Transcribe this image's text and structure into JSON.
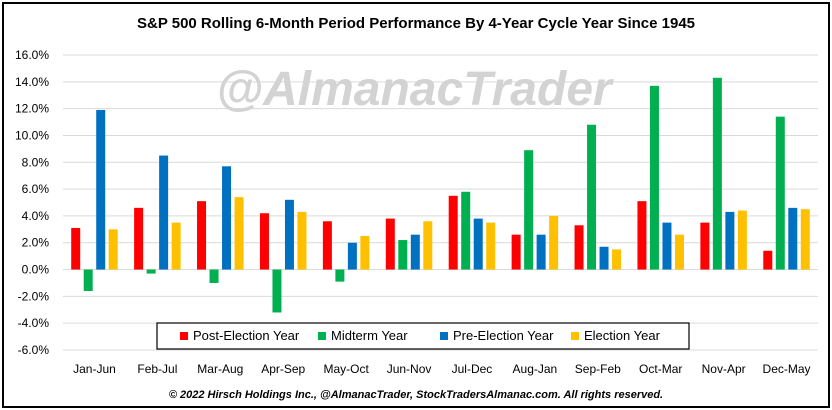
{
  "chart_data": {
    "type": "bar",
    "title": "S&P 500 Rolling 6-Month Period Performance By 4-Year Cycle Year Since 1945",
    "watermark": "@AlmanacTrader",
    "copyright": "© 2022 Hirsch Holdings Inc., @AlmanacTrader, StockTradersAlmanac.com. All rights reserved.",
    "categories": [
      "Jan-Jun",
      "Feb-Jul",
      "Mar-Aug",
      "Apr-Sep",
      "May-Oct",
      "Jun-Nov",
      "Jul-Dec",
      "Aug-Jan",
      "Sep-Feb",
      "Oct-Mar",
      "Nov-Apr",
      "Dec-May"
    ],
    "y_ticks": [
      "16.0%",
      "14.0%",
      "12.0%",
      "10.0%",
      "8.0%",
      "6.0%",
      "4.0%",
      "2.0%",
      "0.0%",
      "-2.0%",
      "-4.0%",
      "-6.0%"
    ],
    "ylim": [
      -6,
      16
    ],
    "grid": true,
    "legend_position": "bottom-center inside plot",
    "series": [
      {
        "name": "Post-Election Year",
        "color": "#ff0000",
        "values": [
          3.1,
          4.6,
          5.1,
          4.2,
          3.6,
          3.8,
          5.5,
          2.6,
          3.3,
          5.1,
          3.5,
          1.4
        ]
      },
      {
        "name": "Midterm Year",
        "color": "#00b050",
        "values": [
          -1.6,
          -0.3,
          -1.0,
          -3.2,
          -0.9,
          2.2,
          5.8,
          8.9,
          10.8,
          13.7,
          14.3,
          11.4
        ]
      },
      {
        "name": "Pre-Election Year",
        "color": "#0070c0",
        "values": [
          11.9,
          8.5,
          7.7,
          5.2,
          2.0,
          2.6,
          3.8,
          2.6,
          1.7,
          3.5,
          4.3,
          4.6
        ]
      },
      {
        "name": "Election Year",
        "color": "#ffc000",
        "values": [
          3.0,
          3.5,
          5.4,
          4.3,
          2.5,
          3.6,
          3.5,
          4.0,
          1.5,
          2.6,
          4.4,
          4.5
        ]
      }
    ]
  }
}
